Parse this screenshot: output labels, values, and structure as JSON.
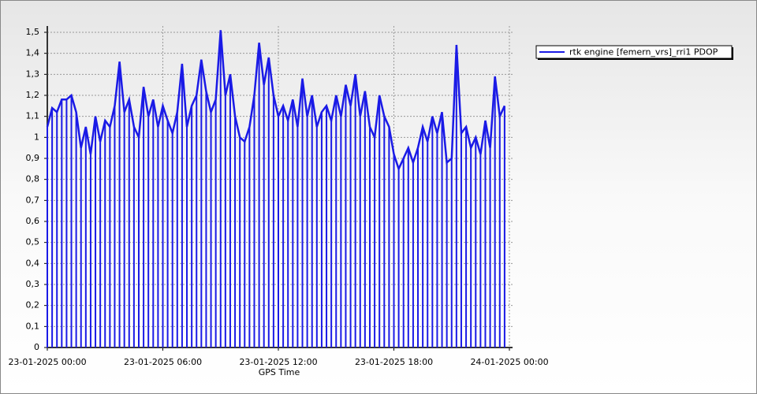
{
  "chart_data": {
    "type": "line",
    "x_label": "GPS Time",
    "x": [
      "23-01-2025 00:00",
      "23-01-2025 00:15",
      "23-01-2025 00:30",
      "23-01-2025 00:45",
      "23-01-2025 01:00",
      "23-01-2025 01:15",
      "23-01-2025 01:30",
      "23-01-2025 01:45",
      "23-01-2025 02:00",
      "23-01-2025 02:15",
      "23-01-2025 02:30",
      "23-01-2025 02:45",
      "23-01-2025 03:00",
      "23-01-2025 03:15",
      "23-01-2025 03:30",
      "23-01-2025 03:45",
      "23-01-2025 04:00",
      "23-01-2025 04:15",
      "23-01-2025 04:30",
      "23-01-2025 04:45",
      "23-01-2025 05:00",
      "23-01-2025 05:15",
      "23-01-2025 05:30",
      "23-01-2025 05:45",
      "23-01-2025 06:00",
      "23-01-2025 06:15",
      "23-01-2025 06:30",
      "23-01-2025 06:45",
      "23-01-2025 07:00",
      "23-01-2025 07:15",
      "23-01-2025 07:30",
      "23-01-2025 07:45",
      "23-01-2025 08:00",
      "23-01-2025 08:15",
      "23-01-2025 08:30",
      "23-01-2025 08:45",
      "23-01-2025 09:00",
      "23-01-2025 09:15",
      "23-01-2025 09:30",
      "23-01-2025 09:45",
      "23-01-2025 10:00",
      "23-01-2025 10:15",
      "23-01-2025 10:30",
      "23-01-2025 10:45",
      "23-01-2025 11:00",
      "23-01-2025 11:15",
      "23-01-2025 11:30",
      "23-01-2025 11:45",
      "23-01-2025 12:00",
      "23-01-2025 12:15",
      "23-01-2025 12:30",
      "23-01-2025 12:45",
      "23-01-2025 13:00",
      "23-01-2025 13:15",
      "23-01-2025 13:30",
      "23-01-2025 13:45",
      "23-01-2025 14:00",
      "23-01-2025 14:15",
      "23-01-2025 14:30",
      "23-01-2025 14:45",
      "23-01-2025 15:00",
      "23-01-2025 15:15",
      "23-01-2025 15:30",
      "23-01-2025 15:45",
      "23-01-2025 16:00",
      "23-01-2025 16:15",
      "23-01-2025 16:30",
      "23-01-2025 16:45",
      "23-01-2025 17:00",
      "23-01-2025 17:15",
      "23-01-2025 17:30",
      "23-01-2025 17:45",
      "23-01-2025 18:00",
      "23-01-2025 18:15",
      "23-01-2025 18:30",
      "23-01-2025 18:45",
      "23-01-2025 19:00",
      "23-01-2025 19:15",
      "23-01-2025 19:30",
      "23-01-2025 19:45",
      "23-01-2025 20:00",
      "23-01-2025 20:15",
      "23-01-2025 20:30",
      "23-01-2025 20:45",
      "23-01-2025 21:00",
      "23-01-2025 21:15",
      "23-01-2025 21:30",
      "23-01-2025 21:45",
      "23-01-2025 22:00",
      "23-01-2025 22:15",
      "23-01-2025 22:30",
      "23-01-2025 22:45",
      "23-01-2025 23:00",
      "23-01-2025 23:15",
      "23-01-2025 23:30",
      "23-01-2025 23:45"
    ],
    "series": [
      {
        "name": "rtk engine [femern_vrs]_rri1 PDOP",
        "color": "#1a1ae6",
        "values": [
          1.05,
          1.14,
          1.12,
          1.18,
          1.18,
          1.2,
          1.12,
          0.95,
          1.05,
          0.92,
          1.1,
          0.98,
          1.08,
          1.05,
          1.15,
          1.36,
          1.12,
          1.18,
          1.05,
          1.0,
          1.24,
          1.1,
          1.18,
          1.05,
          1.15,
          1.08,
          1.02,
          1.12,
          1.35,
          1.05,
          1.15,
          1.2,
          1.37,
          1.22,
          1.12,
          1.18,
          1.51,
          1.2,
          1.3,
          1.1,
          1.0,
          0.98,
          1.05,
          1.2,
          1.45,
          1.25,
          1.38,
          1.2,
          1.1,
          1.15,
          1.08,
          1.18,
          1.05,
          1.28,
          1.1,
          1.2,
          1.05,
          1.12,
          1.15,
          1.08,
          1.2,
          1.1,
          1.25,
          1.15,
          1.3,
          1.1,
          1.22,
          1.05,
          1.0,
          1.2,
          1.1,
          1.05,
          0.92,
          0.85,
          0.9,
          0.95,
          0.88,
          0.95,
          1.05,
          0.98,
          1.1,
          1.02,
          1.12,
          0.88,
          0.9,
          1.44,
          1.02,
          1.05,
          0.95,
          1.0,
          0.92,
          1.08,
          0.95,
          1.29,
          1.1,
          1.15
        ]
      }
    ],
    "xlim": [
      "23-01-2025 00:00",
      "24-01-2025 00:00"
    ],
    "xticks": [
      "23-01-2025 00:00",
      "23-01-2025 06:00",
      "23-01-2025 12:00",
      "23-01-2025 18:00",
      "24-01-2025 00:00"
    ],
    "ylim": [
      0,
      1.53
    ],
    "yticks": [
      0,
      {
        "value": 0.1,
        "label": "0,1"
      },
      {
        "value": 0.2,
        "label": "0,2"
      },
      {
        "value": 0.3,
        "label": "0,3"
      },
      {
        "value": 0.4,
        "label": "0,4"
      },
      {
        "value": 0.5,
        "label": "0,5"
      },
      {
        "value": 0.6,
        "label": "0,6"
      },
      {
        "value": 0.7,
        "label": "0,7"
      },
      {
        "value": 0.8,
        "label": "0,8"
      },
      {
        "value": 0.9,
        "label": "0,9"
      },
      1,
      {
        "value": 1.1,
        "label": "1,1"
      },
      {
        "value": 1.2,
        "label": "1,2"
      },
      {
        "value": 1.3,
        "label": "1,3"
      },
      {
        "value": 1.4,
        "label": "1,4"
      },
      {
        "value": 1.5,
        "label": "1,5"
      }
    ],
    "grid": true,
    "legend": "right"
  }
}
